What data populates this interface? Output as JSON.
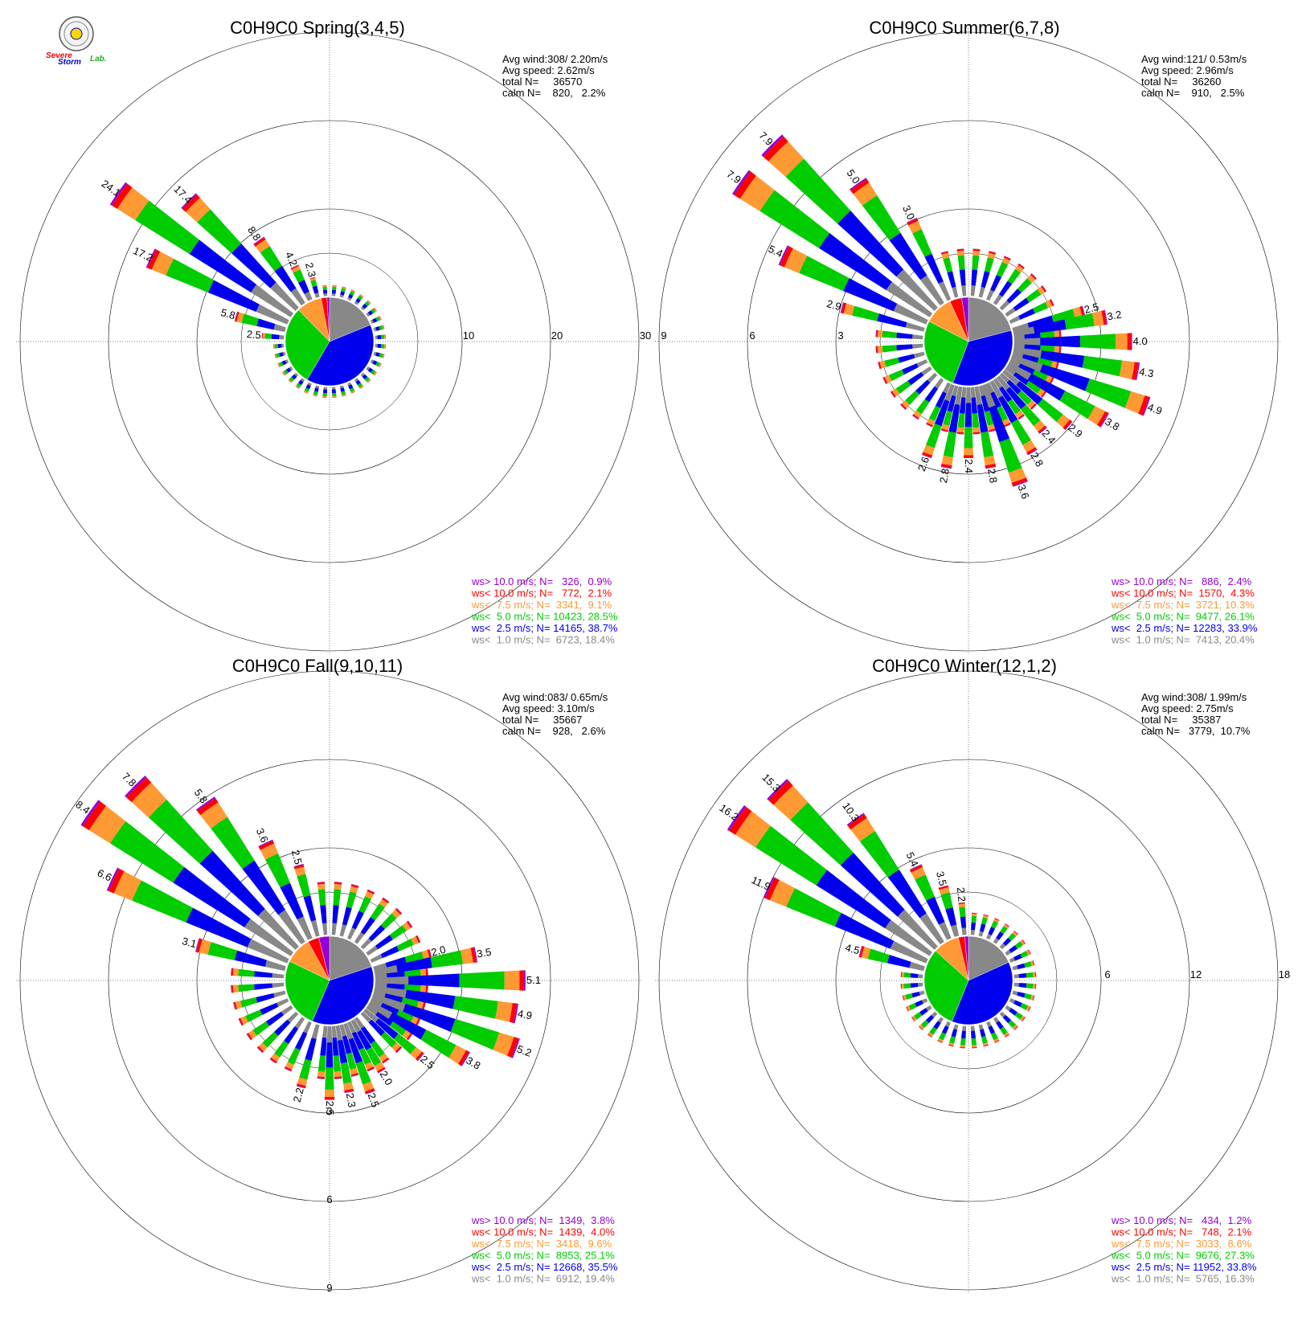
{
  "logo": {
    "text_severe": "Severe",
    "text_storm": "Storm",
    "text_lab": "Lab."
  },
  "colors": {
    "gt10": "#9400d3",
    "lt10": "#ff0000",
    "lt75": "#ff9933",
    "lt5": "#00cc00",
    "lt25": "#0000ee",
    "lt1": "#888888",
    "pie_gray": "#888888",
    "pie_blue": "#0000ee",
    "pie_green": "#00cc00",
    "pie_orange": "#ff9933",
    "pie_red": "#ff0000",
    "pie_purple": "#9400d3"
  },
  "chart_data": [
    {
      "type": "wind-rose",
      "title": "C0H9C0 Spring(3,4,5)",
      "stats": {
        "avg_wind": "Avg wind:308/ 2.20m/s",
        "avg_speed": "Avg speed: 2.62m/s",
        "total": "total N=     36570",
        "calm": "calm N=    820,   2.2%"
      },
      "rings": [
        10,
        20,
        30
      ],
      "ring_axis": "east",
      "max": 30,
      "bar_labels": [
        {
          "dir": 305,
          "value": "24.1"
        },
        {
          "dir": 315,
          "value": "17.4"
        },
        {
          "dir": 295,
          "value": "17.2"
        },
        {
          "dir": 325,
          "value": "8.8"
        },
        {
          "dir": 335,
          "value": "4.2"
        },
        {
          "dir": 345,
          "value": "2.3"
        },
        {
          "dir": 285,
          "value": "5.8"
        },
        {
          "dir": 275,
          "value": "2.5"
        }
      ],
      "bars": [
        {
          "dir": 305,
          "total": 24.1
        },
        {
          "dir": 315,
          "total": 17.4
        },
        {
          "dir": 295,
          "total": 17.2
        },
        {
          "dir": 325,
          "total": 8.8
        },
        {
          "dir": 335,
          "total": 4.2
        },
        {
          "dir": 345,
          "total": 2.3
        },
        {
          "dir": 285,
          "total": 5.8
        },
        {
          "dir": 275,
          "total": 2.5
        }
      ],
      "small_bar": 1.2,
      "pie": [
        18.4,
        38.7,
        28.5,
        9.1,
        2.1,
        0.9
      ],
      "legend": [
        {
          "key": "gt10",
          "text": "ws> 10.0 m/s; N=   326,  0.9%"
        },
        {
          "key": "lt10",
          "text": "ws< 10.0 m/s; N=   772,  2.1%"
        },
        {
          "key": "lt75",
          "text": "ws<  7.5 m/s; N=  3341,  9.1%"
        },
        {
          "key": "lt5",
          "text": "ws<  5.0 m/s; N= 10423, 28.5%"
        },
        {
          "key": "lt25",
          "text": "ws<  2.5 m/s; N= 14165, 38.7%"
        },
        {
          "key": "lt1",
          "text": "ws<  1.0 m/s; N=  6723, 18.4%"
        }
      ]
    },
    {
      "type": "wind-rose",
      "title": "C0H9C0 Summer(6,7,8)",
      "stats": {
        "avg_wind": "Avg wind:121/ 0.53m/s",
        "avg_speed": "Avg speed: 2.96m/s",
        "total": "total N=     36260",
        "calm": "calm N=    910,   2.5%"
      },
      "rings": [
        3,
        6,
        9
      ],
      "ring_axis": "west",
      "max": 9,
      "bar_labels": [
        {
          "dir": 315,
          "value": "7.9"
        },
        {
          "dir": 305,
          "value": "7.9"
        },
        {
          "dir": 325,
          "value": "5.0"
        },
        {
          "dir": 295,
          "value": "5.4"
        },
        {
          "dir": 335,
          "value": "3.0"
        },
        {
          "dir": 285,
          "value": "2.9"
        },
        {
          "dir": 75,
          "value": "2.5"
        },
        {
          "dir": 80,
          "value": "3.2"
        },
        {
          "dir": 90,
          "value": "4.0"
        },
        {
          "dir": 100,
          "value": "4.3"
        },
        {
          "dir": 110,
          "value": "4.9"
        },
        {
          "dir": 120,
          "value": "3.8"
        },
        {
          "dir": 130,
          "value": "2.9"
        },
        {
          "dir": 140,
          "value": "2.4"
        },
        {
          "dir": 150,
          "value": "2.8"
        },
        {
          "dir": 160,
          "value": "3.6"
        },
        {
          "dir": 170,
          "value": "2.8"
        },
        {
          "dir": 180,
          "value": "2.4"
        },
        {
          "dir": 190,
          "value": "2.8"
        },
        {
          "dir": 200,
          "value": "2.6"
        }
      ],
      "bars": [
        {
          "dir": 315,
          "total": 7.9
        },
        {
          "dir": 305,
          "total": 7.9
        },
        {
          "dir": 325,
          "total": 5.0
        },
        {
          "dir": 295,
          "total": 5.4
        },
        {
          "dir": 335,
          "total": 3.0
        },
        {
          "dir": 285,
          "total": 2.9
        },
        {
          "dir": 75,
          "total": 2.5
        },
        {
          "dir": 80,
          "total": 3.2
        },
        {
          "dir": 90,
          "total": 4.0
        },
        {
          "dir": 100,
          "total": 4.3
        },
        {
          "dir": 110,
          "total": 4.9
        },
        {
          "dir": 120,
          "total": 3.8
        },
        {
          "dir": 130,
          "total": 2.9
        },
        {
          "dir": 140,
          "total": 2.4
        },
        {
          "dir": 150,
          "total": 2.8
        },
        {
          "dir": 160,
          "total": 3.6
        },
        {
          "dir": 170,
          "total": 2.8
        },
        {
          "dir": 180,
          "total": 2.4
        },
        {
          "dir": 190,
          "total": 2.8
        },
        {
          "dir": 200,
          "total": 2.6
        }
      ],
      "small_bar": 1.6,
      "pie": [
        20.4,
        33.9,
        26.1,
        10.3,
        4.3,
        2.4
      ],
      "legend": [
        {
          "key": "gt10",
          "text": "ws> 10.0 m/s; N=   886,  2.4%"
        },
        {
          "key": "lt10",
          "text": "ws< 10.0 m/s; N=  1570,  4.3%"
        },
        {
          "key": "lt75",
          "text": "ws<  7.5 m/s; N=  3721, 10.3%"
        },
        {
          "key": "lt5",
          "text": "ws<  5.0 m/s; N=  9477, 26.1%"
        },
        {
          "key": "lt25",
          "text": "ws<  2.5 m/s; N= 12283, 33.9%"
        },
        {
          "key": "lt1",
          "text": "ws<  1.0 m/s; N=  7413, 20.4%"
        }
      ]
    },
    {
      "type": "wind-rose",
      "title": "C0H9C0 Fall(9,10,11)",
      "stats": {
        "avg_wind": "Avg wind:083/ 0.65m/s",
        "avg_speed": "Avg speed: 3.10m/s",
        "total": "total N=     35667",
        "calm": "calm N=    928,   2.6%"
      },
      "rings": [
        3,
        6,
        9
      ],
      "ring_axis": "south",
      "max": 9,
      "bar_labels": [
        {
          "dir": 305,
          "value": "8.4"
        },
        {
          "dir": 315,
          "value": "7.8"
        },
        {
          "dir": 295,
          "value": "6.6"
        },
        {
          "dir": 325,
          "value": "5.8"
        },
        {
          "dir": 335,
          "value": "3.6"
        },
        {
          "dir": 345,
          "value": "2.5"
        },
        {
          "dir": 285,
          "value": "3.1"
        },
        {
          "dir": 75,
          "value": "2.0"
        },
        {
          "dir": 80,
          "value": "3.5"
        },
        {
          "dir": 90,
          "value": "5.1"
        },
        {
          "dir": 100,
          "value": "4.9"
        },
        {
          "dir": 110,
          "value": "5.2"
        },
        {
          "dir": 120,
          "value": "3.8"
        },
        {
          "dir": 130,
          "value": "2.5"
        },
        {
          "dir": 150,
          "value": "2.0"
        },
        {
          "dir": 160,
          "value": "2.5"
        },
        {
          "dir": 170,
          "value": "2.3"
        },
        {
          "dir": 180,
          "value": "2.5"
        },
        {
          "dir": 195,
          "value": "2.2"
        }
      ],
      "bars": [
        {
          "dir": 305,
          "total": 8.4
        },
        {
          "dir": 315,
          "total": 7.8
        },
        {
          "dir": 295,
          "total": 6.6
        },
        {
          "dir": 325,
          "total": 5.8
        },
        {
          "dir": 335,
          "total": 3.6
        },
        {
          "dir": 345,
          "total": 2.5
        },
        {
          "dir": 285,
          "total": 3.1
        },
        {
          "dir": 75,
          "total": 2.0
        },
        {
          "dir": 80,
          "total": 3.5
        },
        {
          "dir": 90,
          "total": 5.1
        },
        {
          "dir": 100,
          "total": 4.9
        },
        {
          "dir": 110,
          "total": 5.2
        },
        {
          "dir": 120,
          "total": 3.8
        },
        {
          "dir": 130,
          "total": 2.5
        },
        {
          "dir": 150,
          "total": 2.0
        },
        {
          "dir": 160,
          "total": 2.5
        },
        {
          "dir": 170,
          "total": 2.3
        },
        {
          "dir": 180,
          "total": 2.5
        },
        {
          "dir": 195,
          "total": 2.2
        }
      ],
      "small_bar": 1.8,
      "pie": [
        19.4,
        35.5,
        25.1,
        9.6,
        4.0,
        3.8
      ],
      "legend": [
        {
          "key": "gt10",
          "text": "ws> 10.0 m/s; N=  1349,  3.8%"
        },
        {
          "key": "lt10",
          "text": "ws< 10.0 m/s; N=  1439,  4.0%"
        },
        {
          "key": "lt75",
          "text": "ws<  7.5 m/s; N=  3418,  9.6%"
        },
        {
          "key": "lt5",
          "text": "ws<  5.0 m/s; N=  8953, 25.1%"
        },
        {
          "key": "lt25",
          "text": "ws<  2.5 m/s; N= 12668, 35.5%"
        },
        {
          "key": "lt1",
          "text": "ws<  1.0 m/s; N=  6912, 19.4%"
        }
      ]
    },
    {
      "type": "wind-rose",
      "title": "C0H9C0 Winter(12,1,2)",
      "stats": {
        "avg_wind": "Avg wind:308/ 1.99m/s",
        "avg_speed": "Avg speed: 2.75m/s",
        "total": "total N=     35387",
        "calm": "calm N=   3779,  10.7%"
      },
      "rings": [
        6,
        12,
        18
      ],
      "ring_axis": "east",
      "max": 18,
      "bar_labels": [
        {
          "dir": 305,
          "value": "16.2"
        },
        {
          "dir": 315,
          "value": "15.3"
        },
        {
          "dir": 295,
          "value": "11.9"
        },
        {
          "dir": 325,
          "value": "10.3"
        },
        {
          "dir": 335,
          "value": "5.4"
        },
        {
          "dir": 345,
          "value": "3.5"
        },
        {
          "dir": 355,
          "value": "2.2"
        },
        {
          "dir": 285,
          "value": "4.5"
        }
      ],
      "bars": [
        {
          "dir": 305,
          "total": 16.2
        },
        {
          "dir": 315,
          "total": 15.3
        },
        {
          "dir": 295,
          "total": 11.9
        },
        {
          "dir": 325,
          "total": 10.3
        },
        {
          "dir": 335,
          "total": 5.4
        },
        {
          "dir": 345,
          "total": 3.5
        },
        {
          "dir": 355,
          "total": 2.2
        },
        {
          "dir": 285,
          "total": 4.5
        }
      ],
      "small_bar": 1.5,
      "pie": [
        16.3,
        33.8,
        27.3,
        8.6,
        2.1,
        1.2
      ],
      "legend": [
        {
          "key": "gt10",
          "text": "ws> 10.0 m/s; N=   434,  1.2%"
        },
        {
          "key": "lt10",
          "text": "ws< 10.0 m/s; N=   748,  2.1%"
        },
        {
          "key": "lt75",
          "text": "ws<  7.5 m/s; N=  3033,  8.6%"
        },
        {
          "key": "lt5",
          "text": "ws<  5.0 m/s; N=  9676, 27.3%"
        },
        {
          "key": "lt25",
          "text": "ws<  2.5 m/s; N= 11952, 33.8%"
        },
        {
          "key": "lt1",
          "text": "ws<  1.0 m/s; N=  5765, 16.3%"
        }
      ]
    }
  ]
}
